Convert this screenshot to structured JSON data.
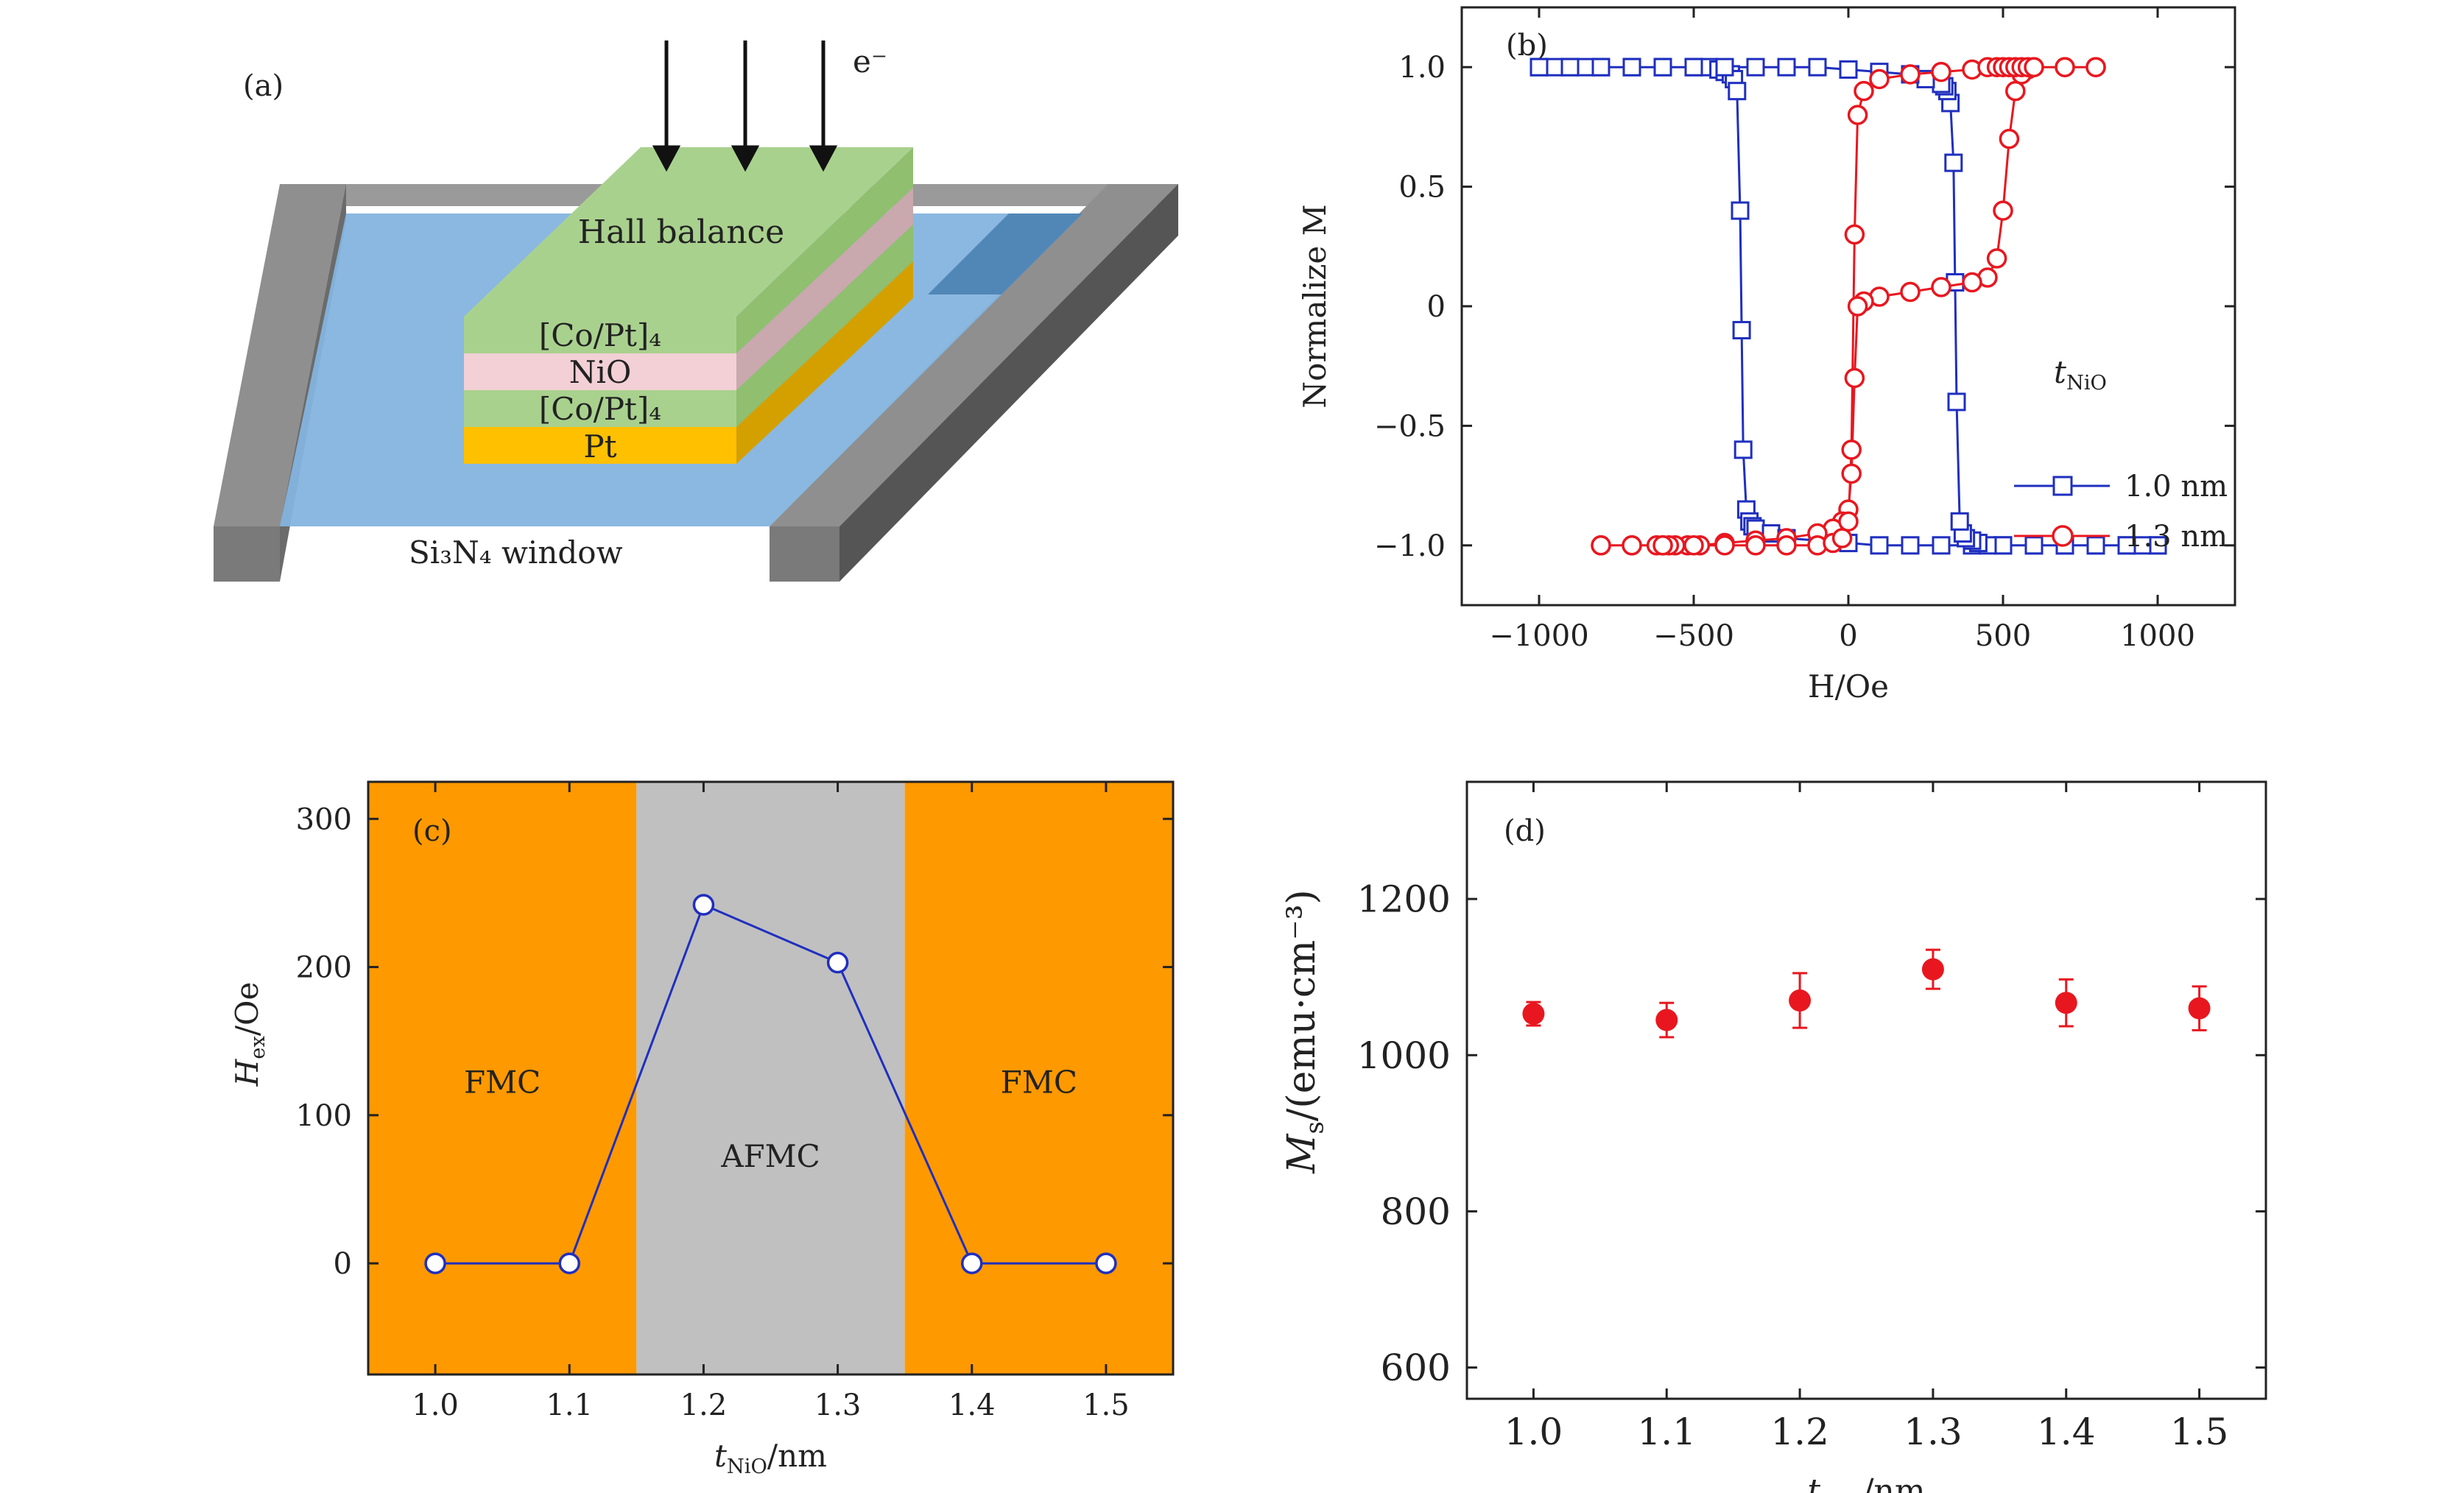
{
  "figure": {
    "panel_a": {
      "tag": "(a)",
      "electron_label": "e⁻",
      "layers": {
        "hall_balance": "Hall balance",
        "copt_top": "[Co/Pt]₄",
        "nio": "NiO",
        "copt_bottom": "[Co/Pt]₄",
        "pt": "Pt"
      },
      "window_label": "Si₃N₄ window",
      "colors": {
        "green": "#a9d18e",
        "pink": "#e8c8cc",
        "gold": "#ffc000",
        "blue": "#84b4df",
        "frame": "#8c8c8c"
      }
    }
  },
  "chart_data": [
    {
      "id": "b",
      "type": "line",
      "tag": "(b)",
      "xlabel": "H/Oe",
      "ylabel": "Normalize M",
      "xlim": [
        -1250,
        1250
      ],
      "ylim": [
        -1.25,
        1.25
      ],
      "xticks": [
        -1000,
        -500,
        0,
        500,
        1000
      ],
      "xtick_labels": [
        "−1000",
        "−500",
        "0",
        "500",
        "1000"
      ],
      "yticks": [
        -1.0,
        -0.5,
        0,
        0.5,
        1.0
      ],
      "ytick_labels": [
        "−1.0",
        "−0.5",
        "0",
        "0.5",
        "1.0"
      ],
      "legend_title": "t_NiO",
      "legend_title_main": "t",
      "legend_title_sub": "NiO",
      "legend_position": "bottom-right",
      "series": [
        {
          "name": "1.0 nm",
          "marker": "square",
          "color": "#1f2fbf",
          "x": [
            -1000,
            -950,
            -900,
            -850,
            -800,
            -700,
            -600,
            -500,
            -450,
            -420,
            -400,
            -380,
            -370,
            -360,
            -350,
            -345,
            -340,
            -330,
            -320,
            -310,
            -300,
            -250,
            -200,
            -100,
            0,
            100,
            200,
            300,
            400,
            500,
            600,
            700,
            800,
            900,
            1000,
            1000,
            950,
            900,
            800,
            700,
            600,
            500,
            450,
            420,
            400,
            380,
            370,
            360,
            350,
            345,
            340,
            330,
            320,
            310,
            300,
            250,
            200,
            100,
            0,
            -100,
            -200,
            -300,
            -400,
            -500,
            -600,
            -700,
            -800,
            -900,
            -1000
          ],
          "y": [
            1.0,
            1.0,
            1.0,
            1.0,
            1.0,
            1.0,
            1.0,
            1.0,
            1.0,
            0.99,
            0.98,
            0.97,
            0.95,
            0.9,
            0.4,
            -0.1,
            -0.6,
            -0.85,
            -0.9,
            -0.92,
            -0.93,
            -0.95,
            -0.97,
            -0.98,
            -0.99,
            -1.0,
            -1.0,
            -1.0,
            -1.0,
            -1.0,
            -1.0,
            -1.0,
            -1.0,
            -1.0,
            -1.0,
            -1.0,
            -1.0,
            -1.0,
            -1.0,
            -1.0,
            -1.0,
            -1.0,
            -1.0,
            -0.99,
            -0.98,
            -0.97,
            -0.95,
            -0.9,
            -0.4,
            0.1,
            0.6,
            0.85,
            0.9,
            0.92,
            0.93,
            0.95,
            0.97,
            0.98,
            0.99,
            1.0,
            1.0,
            1.0,
            1.0,
            1.0,
            1.0,
            1.0,
            1.0,
            1.0,
            1.0
          ]
        },
        {
          "name": "1.3 nm",
          "marker": "circle",
          "color": "#e8171f",
          "x": [
            800,
            700,
            600,
            580,
            560,
            540,
            520,
            500,
            480,
            450,
            400,
            300,
            200,
            100,
            50,
            30,
            20,
            10,
            0,
            -20,
            -50,
            -100,
            -200,
            -300,
            -400,
            -480,
            -520,
            -560,
            -580,
            -600,
            -620,
            -700,
            -800,
            -800,
            -700,
            -600,
            -500,
            -400,
            -300,
            -200,
            -100,
            -50,
            -20,
            0,
            10,
            20,
            30,
            50,
            100,
            200,
            300,
            400,
            450,
            480,
            500,
            520,
            540,
            560,
            580,
            600,
            700,
            800
          ],
          "y": [
            1.0,
            1.0,
            1.0,
            0.99,
            0.97,
            0.9,
            0.7,
            0.4,
            0.2,
            0.12,
            0.1,
            0.08,
            0.06,
            0.04,
            0.02,
            0.0,
            -0.3,
            -0.7,
            -0.85,
            -0.9,
            -0.93,
            -0.95,
            -0.97,
            -0.98,
            -0.99,
            -1.0,
            -1.0,
            -1.0,
            -1.0,
            -1.0,
            -1.0,
            -1.0,
            -1.0,
            -1.0,
            -1.0,
            -1.0,
            -1.0,
            -1.0,
            -1.0,
            -1.0,
            -1.0,
            -0.99,
            -0.97,
            -0.9,
            -0.6,
            0.3,
            0.8,
            0.9,
            0.95,
            0.97,
            0.98,
            0.99,
            1.0,
            1.0,
            1.0,
            1.0,
            1.0,
            1.0,
            1.0,
            1.0,
            1.0,
            1.0
          ]
        }
      ]
    },
    {
      "id": "c",
      "type": "line",
      "tag": "(c)",
      "xlabel_main": "t",
      "xlabel_sub": "NiO",
      "xlabel_unit": "/nm",
      "ylabel_main": "H",
      "ylabel_sub": "ex",
      "ylabel_unit": "/Oe",
      "xlim": [
        0.95,
        1.55
      ],
      "ylim": [
        -75,
        325
      ],
      "xticks": [
        1.0,
        1.1,
        1.2,
        1.3,
        1.4,
        1.5
      ],
      "xtick_labels": [
        "1.0",
        "1.1",
        "1.2",
        "1.3",
        "1.4",
        "1.5"
      ],
      "yticks": [
        0,
        100,
        200,
        300
      ],
      "ytick_labels": [
        "0",
        "100",
        "200",
        "300"
      ],
      "regions": [
        {
          "label": "FMC",
          "from": 0.95,
          "to": 1.15,
          "color": "#ff9900"
        },
        {
          "label": "AFMC",
          "from": 1.15,
          "to": 1.35,
          "color": "#c0c0c0"
        },
        {
          "label": "FMC",
          "from": 1.35,
          "to": 1.55,
          "color": "#ff9900"
        }
      ],
      "series": [
        {
          "color": "#1f2fbf",
          "x": [
            1.0,
            1.1,
            1.2,
            1.3,
            1.4,
            1.5
          ],
          "y": [
            0,
            0,
            242,
            203,
            0,
            0
          ]
        }
      ]
    },
    {
      "id": "d",
      "type": "scatter",
      "tag": "(d)",
      "xlabel_main": "t",
      "xlabel_sub": "NiO",
      "xlabel_unit": "/nm",
      "ylabel_main": "M",
      "ylabel_sub": "s",
      "ylabel_unit": "/(emu·cm⁻³)",
      "xlim": [
        0.95,
        1.55
      ],
      "ylim": [
        560,
        1350
      ],
      "xticks": [
        1.0,
        1.1,
        1.2,
        1.3,
        1.4,
        1.5
      ],
      "xtick_labels": [
        "1.0",
        "1.1",
        "1.2",
        "1.3",
        "1.4",
        "1.5"
      ],
      "yticks": [
        600,
        800,
        1000,
        1200
      ],
      "ytick_labels": [
        "600",
        "800",
        "1000",
        "1200"
      ],
      "series": [
        {
          "color": "#e8171f",
          "x": [
            1.0,
            1.1,
            1.2,
            1.3,
            1.4,
            1.5
          ],
          "y": [
            1053,
            1045,
            1070,
            1110,
            1067,
            1060
          ],
          "err": [
            15,
            22,
            35,
            25,
            30,
            28
          ]
        }
      ]
    }
  ]
}
